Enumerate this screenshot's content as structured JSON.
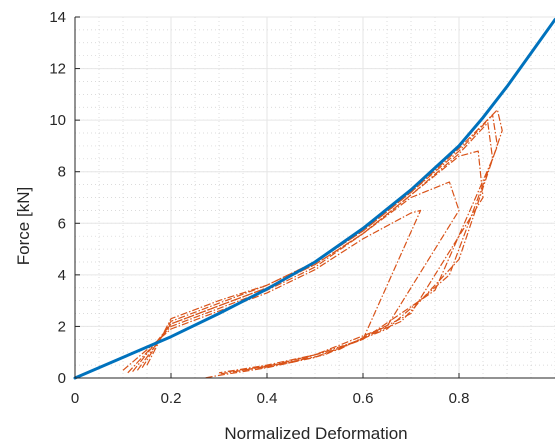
{
  "chart_data": {
    "type": "line",
    "title": "",
    "xlabel": "Normalized Deformation",
    "ylabel": "Force [kN]",
    "xlim": [
      0,
      1
    ],
    "ylim": [
      0,
      14
    ],
    "xticks": [
      0,
      0.2,
      0.4,
      0.6,
      0.8
    ],
    "xtick_labels": [
      "0",
      "0.2",
      "0.4",
      "0.6",
      "0.8"
    ],
    "yticks": [
      0,
      2,
      4,
      6,
      8,
      10,
      12,
      14
    ],
    "ytick_labels": [
      "0",
      "2",
      "4",
      "6",
      "8",
      "10",
      "12",
      "14"
    ],
    "grid": "on (major and minor)",
    "colors": {
      "model": "#0072BD",
      "measured": "#D95319",
      "grid": "#e6e6e6",
      "axis": "#262626"
    },
    "series": [
      {
        "style": "solid",
        "x": [
          0,
          0.1,
          0.2,
          0.3,
          0.4,
          0.5,
          0.6,
          0.7,
          0.8,
          0.85,
          0.9,
          0.95,
          1.0
        ],
        "y": [
          0,
          0.8,
          1.6,
          2.5,
          3.45,
          4.5,
          5.8,
          7.3,
          9.0,
          10.1,
          11.3,
          12.6,
          13.9
        ]
      },
      {
        "style": "dash-dot",
        "cycles": [
          {
            "x": [
              0.1,
              0.2,
              0.3,
              0.4,
              0.5,
              0.6,
              0.7,
              0.72,
              0.6,
              0.5,
              0.4,
              0.3,
              0.27
            ],
            "y": [
              0.3,
              1.9,
              2.6,
              3.3,
              4.2,
              5.4,
              6.4,
              6.5,
              1.5,
              0.8,
              0.4,
              0.1,
              0.0
            ]
          },
          {
            "x": [
              0.11,
              0.2,
              0.3,
              0.4,
              0.5,
              0.6,
              0.7,
              0.78,
              0.8,
              0.65,
              0.5,
              0.4,
              0.3
            ],
            "y": [
              0.2,
              2.0,
              2.7,
              3.4,
              4.3,
              5.6,
              7.0,
              7.6,
              6.5,
              2.0,
              0.9,
              0.45,
              0.15
            ]
          },
          {
            "x": [
              0.12,
              0.2,
              0.3,
              0.4,
              0.5,
              0.6,
              0.7,
              0.8,
              0.84,
              0.85,
              0.7,
              0.55,
              0.4,
              0.3
            ],
            "y": [
              0.25,
              2.1,
              2.8,
              3.5,
              4.4,
              5.6,
              7.1,
              8.6,
              8.8,
              7.0,
              2.5,
              1.1,
              0.5,
              0.2
            ]
          },
          {
            "x": [
              0.13,
              0.2,
              0.3,
              0.4,
              0.5,
              0.6,
              0.7,
              0.8,
              0.86,
              0.87,
              0.75,
              0.6,
              0.45,
              0.32
            ],
            "y": [
              0.3,
              2.1,
              2.8,
              3.5,
              4.4,
              5.6,
              7.1,
              8.7,
              9.9,
              8.5,
              3.4,
              1.5,
              0.6,
              0.25
            ]
          },
          {
            "x": [
              0.14,
              0.2,
              0.3,
              0.4,
              0.5,
              0.6,
              0.7,
              0.8,
              0.87,
              0.88,
              0.78,
              0.65,
              0.5,
              0.35
            ],
            "y": [
              0.4,
              2.2,
              2.9,
              3.6,
              4.5,
              5.7,
              7.2,
              8.8,
              10.2,
              9.0,
              4.0,
              1.9,
              0.8,
              0.3
            ]
          },
          {
            "x": [
              0.15,
              0.2,
              0.3,
              0.4,
              0.5,
              0.6,
              0.7,
              0.8,
              0.88,
              0.89,
              0.8,
              0.68,
              0.52,
              0.38
            ],
            "y": [
              0.5,
              2.3,
              3.0,
              3.6,
              4.5,
              5.7,
              7.2,
              8.9,
              10.4,
              9.6,
              4.6,
              2.2,
              0.9,
              0.35
            ]
          }
        ]
      }
    ]
  }
}
